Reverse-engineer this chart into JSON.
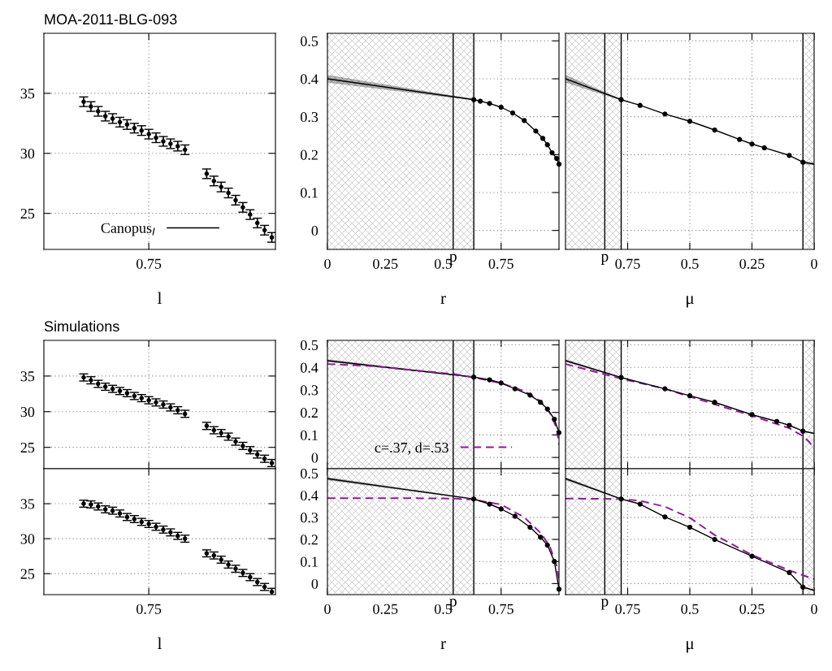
{
  "chart_data": [
    {
      "type": "scatter",
      "title": "MOA-2011-BLG-093",
      "xlabel": "l",
      "categories": [
        null,
        null,
        null,
        null,
        null,
        null,
        null,
        null,
        null,
        null,
        null,
        null,
        null,
        null,
        "0.75",
        null,
        null,
        null,
        null,
        null,
        null,
        null,
        null,
        null,
        null,
        null,
        null,
        null,
        null,
        null,
        null,
        null
      ],
      "ylim": [
        22,
        40
      ],
      "yticks": [
        25,
        30,
        35
      ],
      "grid": true,
      "legend": "bottom",
      "marker": "circle",
      "series": [
        {
          "name": "Canopus$_{I}$",
          "color": "#000000",
          "values": [
            null,
            null,
            null,
            null,
            null,
            34.3,
            33.9,
            33.5,
            33.1,
            32.9,
            32.6,
            32.4,
            32.1,
            31.9,
            31.6,
            31.3,
            31.0,
            30.8,
            30.6,
            30.3,
            null,
            null,
            28.3,
            27.7,
            27.2,
            26.7,
            26.1,
            25.5,
            24.9,
            24.2,
            23.6,
            23.0
          ],
          "errors": [
            null,
            null,
            null,
            null,
            null,
            0.4,
            0.4,
            0.4,
            0.4,
            0.4,
            0.4,
            0.4,
            0.4,
            0.4,
            0.4,
            0.4,
            0.4,
            0.4,
            0.4,
            0.4,
            null,
            null,
            0.4,
            0.4,
            0.4,
            0.4,
            0.4,
            0.4,
            0.4,
            0.4,
            0.4,
            0.4
          ]
        }
      ]
    },
    {
      "type": "line",
      "xlabel": "r",
      "xlim": [
        0,
        1
      ],
      "xticks": [
        0,
        0.25,
        0.5,
        0.75
      ],
      "ylim": [
        -0.05,
        0.52
      ],
      "yticks": [
        0,
        0.1,
        0.2,
        0.3,
        0.4,
        0.5
      ],
      "grid": true,
      "ref_lines": [
        {
          "axis": "x",
          "value": 0.543,
          "label": "p",
          "color": "#000000"
        },
        {
          "axis": "x",
          "value": 0.632,
          "color": "#000000"
        }
      ],
      "bands": [
        {
          "axis": "x",
          "from": 0,
          "to": 0.632,
          "color": "#c0c0c0"
        }
      ],
      "series": [
        {
          "color": "#000000",
          "x": [
            0,
            0.632
          ],
          "values": [
            0.4,
            0.345
          ],
          "lower": [
            0.39,
            0.343
          ],
          "upper": [
            0.41,
            0.347
          ]
        },
        {
          "color": "#000000",
          "marker": "circle",
          "x": [
            0.632,
            0.66,
            0.7,
            0.75,
            0.8,
            0.85,
            0.9,
            0.93,
            0.95,
            0.97,
            0.99,
            1.0
          ],
          "values": [
            0.345,
            0.341,
            0.335,
            0.325,
            0.31,
            0.29,
            0.262,
            0.243,
            0.226,
            0.205,
            0.19,
            0.175
          ]
        }
      ]
    },
    {
      "type": "line",
      "xlabel": "μ",
      "xlim": [
        1,
        0
      ],
      "xticks": [
        0.75,
        0.5,
        0.25,
        0
      ],
      "ylim": [
        -0.05,
        0.52
      ],
      "yticks": [
        0,
        0.1,
        0.2,
        0.3,
        0.4,
        0.5
      ],
      "grid": true,
      "tick_labels": "x",
      "ref_lines": [
        {
          "axis": "x",
          "value": 0.842,
          "label": "p",
          "color": "#000000"
        },
        {
          "axis": "x",
          "value": 0.776,
          "color": "#000000"
        },
        {
          "axis": "x",
          "value": 0.045,
          "color": "#000000"
        }
      ],
      "bands": [
        {
          "axis": "x",
          "from": 1,
          "to": 0.776,
          "color": "#c0c0c0"
        },
        {
          "axis": "x",
          "from": 0.045,
          "to": 0,
          "color": "#c0c0c0"
        }
      ],
      "series": [
        {
          "color": "#000000",
          "x": [
            1,
            0.776
          ],
          "values": [
            0.4,
            0.345
          ],
          "lower": [
            0.39,
            0.343
          ],
          "upper": [
            0.41,
            0.347
          ]
        },
        {
          "color": "#000000",
          "marker": "circle",
          "x": [
            0.776,
            0.7,
            0.6,
            0.5,
            0.4,
            0.3,
            0.25,
            0.2,
            0.1,
            0.045
          ],
          "values": [
            0.345,
            0.33,
            0.307,
            0.288,
            0.265,
            0.24,
            0.228,
            0.218,
            0.198,
            0.18
          ]
        },
        {
          "color": "#000000",
          "x": [
            0.045,
            0
          ],
          "values": [
            0.18,
            0.175
          ],
          "lower": [
            0.175,
            0.172
          ],
          "upper": [
            0.185,
            0.178
          ]
        }
      ]
    },
    {
      "type": "scatter",
      "title": "Simulations",
      "categories": [
        null,
        null,
        null,
        null,
        null,
        null,
        null,
        null,
        null,
        null,
        null,
        null,
        null,
        null,
        null,
        null,
        null,
        null,
        null,
        null,
        null,
        null,
        null,
        null,
        null,
        null,
        null,
        null,
        null,
        null,
        null,
        null
      ],
      "ylim": [
        22,
        40
      ],
      "yticks": [
        25,
        30,
        35
      ],
      "grid": true,
      "marker": "circle",
      "tick_labels": "y",
      "series": [
        {
          "color": "#000000",
          "values": [
            null,
            null,
            null,
            null,
            null,
            34.8,
            34.4,
            33.9,
            33.5,
            33.2,
            32.9,
            32.6,
            32.2,
            31.9,
            31.6,
            31.3,
            31.0,
            30.6,
            30.2,
            29.7,
            null,
            null,
            28.0,
            27.4,
            27.0,
            26.5,
            25.8,
            25.2,
            24.6,
            24.0,
            23.4,
            22.8
          ],
          "errors": [
            null,
            null,
            null,
            null,
            null,
            0.5,
            0.5,
            0.5,
            0.5,
            0.5,
            0.5,
            0.5,
            0.5,
            0.5,
            0.5,
            0.5,
            0.5,
            0.5,
            0.5,
            0.5,
            null,
            null,
            0.5,
            0.5,
            0.5,
            0.5,
            0.5,
            0.5,
            0.5,
            0.5,
            0.5,
            0.5
          ]
        }
      ]
    },
    {
      "type": "line",
      "xlim": [
        0,
        1
      ],
      "xticks": [
        0,
        0.25,
        0.5,
        0.75
      ],
      "ylim": [
        -0.05,
        0.52
      ],
      "yticks": [
        0,
        0.1,
        0.2,
        0.3,
        0.4,
        0.5
      ],
      "grid": true,
      "tick_labels": "y",
      "legend": "bottom",
      "ref_lines": [
        {
          "axis": "x",
          "value": 0.543,
          "color": "#000000"
        },
        {
          "axis": "x",
          "value": 0.632,
          "color": "#000000"
        }
      ],
      "bands": [
        {
          "axis": "x",
          "from": 0,
          "to": 0.632,
          "color": "#c0c0c0"
        }
      ],
      "series": [
        {
          "color": "#000000",
          "x": [
            0,
            0.632
          ],
          "values": [
            0.43,
            0.357
          ],
          "lower": [
            0.424,
            0.355
          ],
          "upper": [
            0.436,
            0.359
          ]
        },
        {
          "color": "#000000",
          "marker": "circle",
          "x": [
            0.632,
            0.7,
            0.75,
            0.81,
            0.875,
            0.92,
            0.95,
            0.98,
            1.0
          ],
          "values": [
            0.357,
            0.345,
            0.331,
            0.305,
            0.277,
            0.245,
            0.215,
            0.17,
            0.11
          ]
        },
        {
          "name": "c=.37, d=.53",
          "color": "#94179b",
          "line_style": "dashed",
          "x": [
            0,
            0.2,
            0.4,
            0.55,
            0.632,
            0.75,
            0.85,
            0.92,
            0.96,
            0.99,
            1.0
          ],
          "values": [
            0.415,
            0.405,
            0.385,
            0.37,
            0.355,
            0.33,
            0.295,
            0.25,
            0.2,
            0.13,
            0.057
          ]
        }
      ]
    },
    {
      "type": "line",
      "xlim": [
        1,
        0
      ],
      "xticks": [
        0.75,
        0.5,
        0.25,
        0
      ],
      "ylim": [
        -0.05,
        0.52
      ],
      "yticks": [
        0,
        0.1,
        0.2,
        0.3,
        0.4,
        0.5
      ],
      "grid": true,
      "tick_labels": false,
      "ref_lines": [
        {
          "axis": "x",
          "value": 0.842,
          "color": "#000000"
        },
        {
          "axis": "x",
          "value": 0.776,
          "color": "#000000"
        },
        {
          "axis": "x",
          "value": 0.045,
          "color": "#000000"
        }
      ],
      "bands": [
        {
          "axis": "x",
          "from": 1,
          "to": 0.776,
          "color": "#c0c0c0"
        },
        {
          "axis": "x",
          "from": 0.045,
          "to": 0,
          "color": "#c0c0c0"
        }
      ],
      "series": [
        {
          "color": "#000000",
          "x": [
            1,
            0.776
          ],
          "values": [
            0.43,
            0.355
          ],
          "lower": [
            0.424,
            0.353
          ],
          "upper": [
            0.436,
            0.357
          ]
        },
        {
          "color": "#000000",
          "marker": "circle",
          "x": [
            0.776,
            0.6,
            0.5,
            0.4,
            0.25,
            0.15,
            0.1,
            0.045
          ],
          "values": [
            0.355,
            0.305,
            0.274,
            0.245,
            0.19,
            0.16,
            0.143,
            0.117
          ]
        },
        {
          "color": "#000000",
          "x": [
            0.045,
            0
          ],
          "values": [
            0.117,
            0.107
          ],
          "lower": [
            0.113,
            0.104
          ],
          "upper": [
            0.121,
            0.11
          ]
        },
        {
          "color": "#94179b",
          "line_style": "dashed",
          "x": [
            1,
            0.776,
            0.6,
            0.5,
            0.25,
            0.1,
            0.045,
            0.02,
            0
          ],
          "values": [
            0.415,
            0.35,
            0.305,
            0.27,
            0.185,
            0.13,
            0.095,
            0.07,
            0.04
          ]
        }
      ]
    },
    {
      "type": "scatter",
      "xlabel": "l",
      "categories": [
        null,
        null,
        null,
        null,
        null,
        null,
        null,
        null,
        null,
        null,
        null,
        null,
        null,
        null,
        "0.75",
        null,
        null,
        null,
        null,
        null,
        null,
        null,
        null,
        null,
        null,
        null,
        null,
        null,
        null,
        null,
        null,
        null
      ],
      "ylim": [
        22,
        40
      ],
      "yticks": [
        25,
        30,
        35
      ],
      "grid": true,
      "marker": "circle",
      "series": [
        {
          "color": "#000000",
          "values": [
            null,
            null,
            null,
            null,
            null,
            35.0,
            34.9,
            34.6,
            34.2,
            34.0,
            33.6,
            33.1,
            32.8,
            32.4,
            32.1,
            31.7,
            31.3,
            30.9,
            30.4,
            30.0,
            null,
            null,
            27.9,
            27.6,
            27.0,
            26.3,
            25.7,
            25.1,
            24.5,
            23.8,
            23.1,
            22.4
          ],
          "errors": [
            null,
            null,
            null,
            null,
            null,
            0.5,
            0.5,
            0.5,
            0.5,
            0.5,
            0.5,
            0.5,
            0.5,
            0.5,
            0.5,
            0.5,
            0.5,
            0.5,
            0.5,
            0.5,
            null,
            null,
            0.5,
            0.5,
            0.5,
            0.5,
            0.5,
            0.5,
            0.5,
            0.5,
            0.5,
            0.5
          ]
        }
      ]
    },
    {
      "type": "line",
      "xlabel": "r",
      "xlim": [
        0,
        1
      ],
      "xticks": [
        0,
        0.25,
        0.5,
        0.75
      ],
      "ylim": [
        -0.05,
        0.52
      ],
      "yticks": [
        0,
        0.1,
        0.2,
        0.3,
        0.4,
        0.5
      ],
      "grid": true,
      "ref_lines": [
        {
          "axis": "x",
          "value": 0.543,
          "label": "p",
          "color": "#000000"
        },
        {
          "axis": "x",
          "value": 0.632,
          "color": "#000000"
        }
      ],
      "bands": [
        {
          "axis": "x",
          "from": 0,
          "to": 0.632,
          "color": "#c0c0c0"
        }
      ],
      "series": [
        {
          "color": "#000000",
          "x": [
            0,
            0.632
          ],
          "values": [
            0.475,
            0.383
          ],
          "lower": [
            0.468,
            0.381
          ],
          "upper": [
            0.482,
            0.385
          ]
        },
        {
          "color": "#000000",
          "marker": "circle",
          "x": [
            0.632,
            0.7,
            0.75,
            0.81,
            0.875,
            0.92,
            0.95,
            0.98,
            1.0
          ],
          "values": [
            0.383,
            0.36,
            0.338,
            0.305,
            0.255,
            0.21,
            0.174,
            0.1,
            -0.025
          ]
        },
        {
          "color": "#94179b",
          "line_style": "dashed",
          "x": [
            0,
            0.3,
            0.55,
            0.632,
            0.75,
            0.85,
            0.92,
            0.96,
            0.99,
            1.0
          ],
          "values": [
            0.387,
            0.387,
            0.385,
            0.38,
            0.358,
            0.3,
            0.23,
            0.17,
            0.08,
            0.02
          ]
        }
      ]
    },
    {
      "type": "line",
      "xlabel": "μ",
      "xlim": [
        1,
        0
      ],
      "xticks": [
        0.75,
        0.5,
        0.25,
        0
      ],
      "ylim": [
        -0.05,
        0.52
      ],
      "yticks": [
        0,
        0.1,
        0.2,
        0.3,
        0.4,
        0.5
      ],
      "grid": true,
      "tick_labels": "x",
      "ref_lines": [
        {
          "axis": "x",
          "value": 0.842,
          "label": "p",
          "color": "#000000"
        },
        {
          "axis": "x",
          "value": 0.776,
          "color": "#000000"
        },
        {
          "axis": "x",
          "value": 0.045,
          "color": "#000000"
        }
      ],
      "bands": [
        {
          "axis": "x",
          "from": 1,
          "to": 0.776,
          "color": "#c0c0c0"
        },
        {
          "axis": "x",
          "from": 0.045,
          "to": 0,
          "color": "#c0c0c0"
        }
      ],
      "series": [
        {
          "color": "#000000",
          "x": [
            1,
            0.776
          ],
          "values": [
            0.475,
            0.383
          ],
          "lower": [
            0.468,
            0.381
          ],
          "upper": [
            0.482,
            0.385
          ]
        },
        {
          "color": "#000000",
          "marker": "circle",
          "x": [
            0.776,
            0.7,
            0.6,
            0.5,
            0.4,
            0.25,
            0.1,
            0.045
          ],
          "values": [
            0.383,
            0.36,
            0.302,
            0.255,
            0.2,
            0.124,
            0.05,
            -0.016
          ]
        },
        {
          "color": "#000000",
          "x": [
            0.045,
            0
          ],
          "values": [
            -0.016,
            -0.031
          ],
          "lower": [
            -0.02,
            -0.034
          ],
          "upper": [
            -0.012,
            -0.028
          ]
        },
        {
          "color": "#94179b",
          "line_style": "dashed",
          "x": [
            1,
            0.776,
            0.7,
            0.6,
            0.5,
            0.4,
            0.25,
            0.1,
            0
          ],
          "values": [
            0.385,
            0.383,
            0.375,
            0.348,
            0.298,
            0.22,
            0.13,
            0.06,
            0.02
          ]
        }
      ]
    }
  ]
}
